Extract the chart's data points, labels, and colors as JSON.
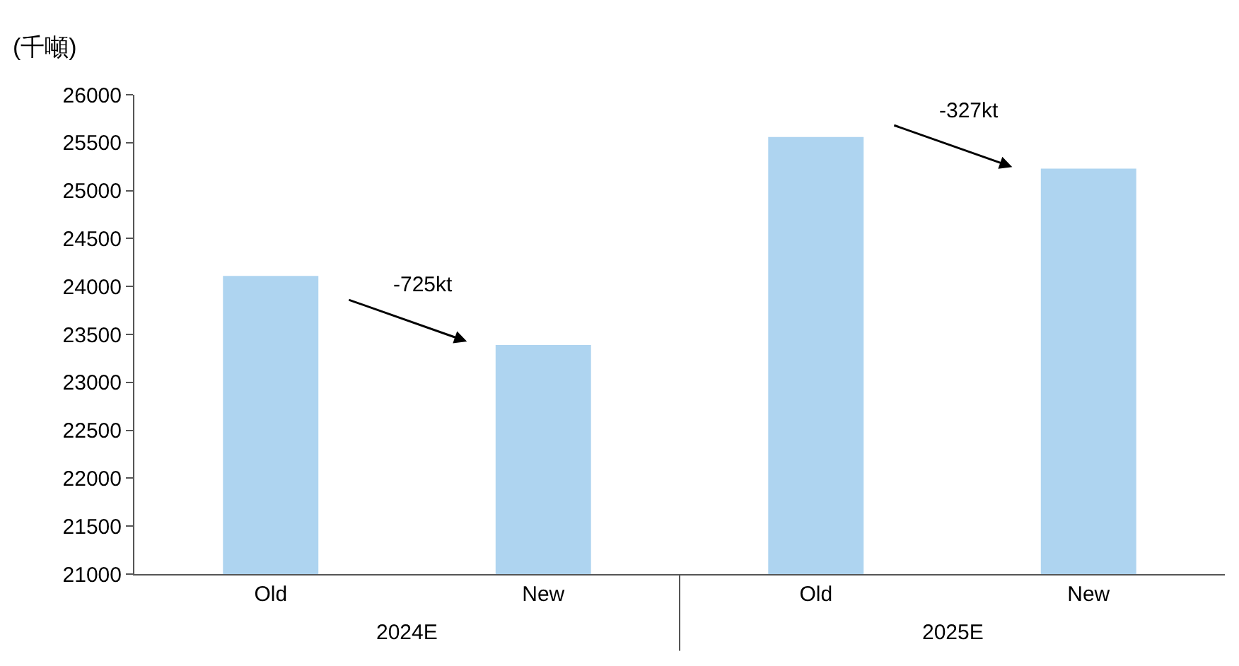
{
  "chart_data": {
    "type": "bar",
    "ylabel": "(千噸)",
    "categories": [
      "Old",
      "New",
      "Old",
      "New"
    ],
    "values": [
      24110,
      23390,
      25560,
      25230
    ],
    "color": "#aed4f0",
    "ylim": [
      21000,
      26000
    ],
    "yticks": [
      21000,
      21500,
      22000,
      22500,
      23000,
      23500,
      24000,
      24500,
      25000,
      25500,
      26000
    ],
    "annotations": [
      "-725kt",
      "-327kt",
      "2024E",
      "2025E"
    ]
  }
}
